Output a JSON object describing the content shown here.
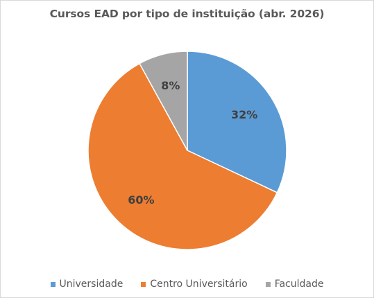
{
  "chart_data": {
    "type": "pie",
    "title": "Cursos EAD por tipo de instituição (abr. 2026)",
    "categories": [
      "Universidade",
      "Centro Universitário",
      "Faculdade"
    ],
    "values": [
      32,
      60,
      8
    ],
    "data_labels": [
      "32%",
      "60%",
      "8%"
    ],
    "colors": [
      "#5b9bd5",
      "#ed7d31",
      "#a5a5a5"
    ],
    "legend_position": "bottom",
    "start_angle": "12 o'clock, clockwise"
  }
}
